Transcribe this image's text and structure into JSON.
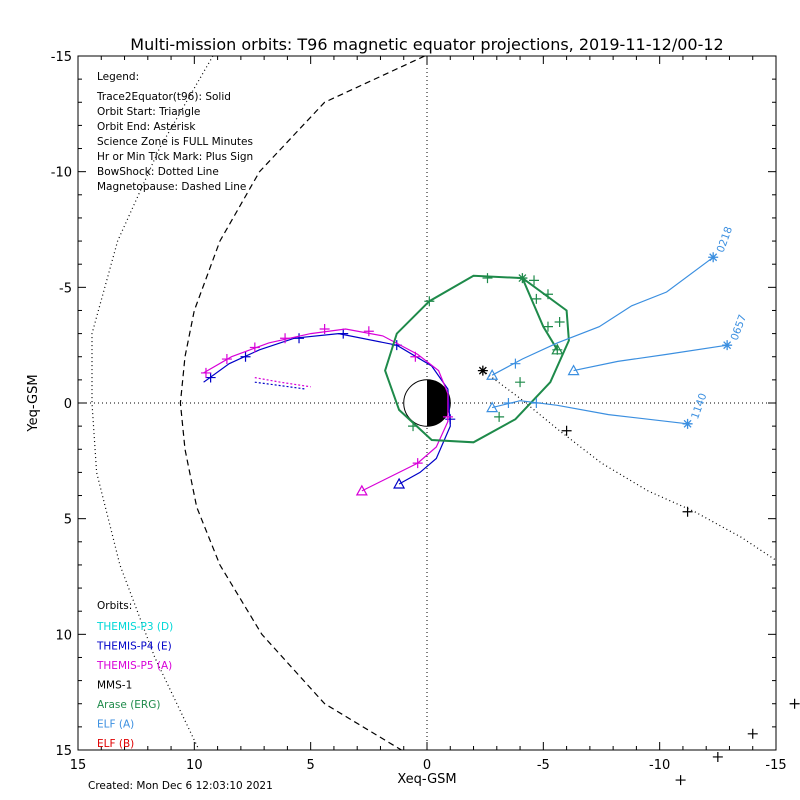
{
  "title": "Multi-mission orbits: T96 magnetic equator projections, 2019-11-12/00-12",
  "created": "Created: Mon Dec  6 12:03:10 2021",
  "legend": {
    "heading": "Legend:",
    "lines": [
      "Trace2Equator(t96): Solid",
      "Orbit Start: Triangle",
      "Orbit End: Asterisk",
      "Science Zone is FULL Minutes",
      "Hr or Min Tick Mark: Plus Sign",
      "BowShock: Dotted Line",
      "Magnetopause: Dashed Line"
    ]
  },
  "orbits_legend": {
    "heading": "Orbits:",
    "items": [
      {
        "label": "THEMIS-P3 (D)",
        "color": "#00d8d8"
      },
      {
        "label": "THEMIS-P4 (E)",
        "color": "#0000c8"
      },
      {
        "label": "THEMIS-P5 (A)",
        "color": "#d800d8"
      },
      {
        "label": "MMS-1",
        "color": "#000000"
      },
      {
        "label": "Arase (ERG)",
        "color": "#1e8a4a"
      },
      {
        "label": "ELF (A)",
        "color": "#3b8fe0"
      },
      {
        "label": "ELF (B)",
        "color": "#e00000"
      }
    ]
  },
  "chart_data": {
    "type": "line",
    "xlabel": "Xeq-GSM",
    "ylabel": "Yeq-GSM",
    "xlim": [
      15,
      -15
    ],
    "ylim": [
      -15,
      15
    ],
    "xticks": [
      15,
      10,
      5,
      0,
      -5,
      -10,
      -15
    ],
    "yticks": [
      -15,
      -10,
      -5,
      0,
      5,
      10,
      15
    ],
    "xtick_labels": [
      "15",
      "10",
      "5",
      "0",
      "-5",
      "-10",
      "-15"
    ],
    "ytick_labels": [
      "-15",
      "-10",
      "-5",
      "0",
      "5",
      "10",
      "15"
    ],
    "earth": {
      "radius": 1
    },
    "boundaries": [
      {
        "name": "BowShock",
        "style": "dotted",
        "color": "#000000",
        "points": [
          [
            9.2,
            -15
          ],
          [
            11.5,
            -11
          ],
          [
            13.3,
            -7
          ],
          [
            14.4,
            -3
          ],
          [
            14.4,
            0
          ],
          [
            14.2,
            3
          ],
          [
            13.2,
            7
          ],
          [
            11.7,
            11
          ],
          [
            9.8,
            15
          ]
        ]
      },
      {
        "name": "Magnetopause",
        "style": "dashed",
        "color": "#000000",
        "points": [
          [
            0.1,
            -15
          ],
          [
            4.4,
            -13
          ],
          [
            7.2,
            -10
          ],
          [
            8.9,
            -7
          ],
          [
            10.0,
            -4
          ],
          [
            10.4,
            -2
          ],
          [
            10.6,
            0
          ],
          [
            10.4,
            2
          ],
          [
            9.9,
            4.5
          ],
          [
            8.9,
            7
          ],
          [
            7.1,
            10
          ],
          [
            4.4,
            13
          ],
          [
            1.1,
            15
          ]
        ]
      }
    ],
    "series": [
      {
        "name": "THEMIS-P4 (E)",
        "color": "#0000c8",
        "points": [
          [
            9.6,
            -0.9
          ],
          [
            8.5,
            -1.7
          ],
          [
            7.2,
            -2.3
          ],
          [
            5.7,
            -2.8
          ],
          [
            3.8,
            -3.0
          ],
          [
            1.3,
            -2.5
          ],
          [
            -0.2,
            -1.6
          ],
          [
            -0.9,
            -0.6
          ],
          [
            -1.0,
            1.0
          ],
          [
            -0.4,
            2.4
          ],
          [
            0.3,
            3.0
          ],
          [
            1.2,
            3.5
          ]
        ],
        "ticks": [
          [
            9.3,
            -1.1
          ],
          [
            7.8,
            -2.0
          ],
          [
            5.5,
            -2.8
          ],
          [
            3.6,
            -3.0
          ],
          [
            1.3,
            -2.5
          ],
          [
            -1.0,
            0.7
          ]
        ],
        "start": [
          1.2,
          3.5
        ],
        "end": null
      },
      {
        "name": "THEMIS-P5 (A)",
        "color": "#d800d8",
        "points": [
          [
            9.6,
            -1.3
          ],
          [
            8.4,
            -2.0
          ],
          [
            6.8,
            -2.6
          ],
          [
            5.0,
            -3.0
          ],
          [
            3.5,
            -3.2
          ],
          [
            1.9,
            -2.9
          ],
          [
            0.4,
            -2.1
          ],
          [
            -0.5,
            -1.4
          ],
          [
            -0.9,
            -0.4
          ],
          [
            -0.9,
            0.8
          ],
          [
            -0.4,
            1.9
          ],
          [
            0.4,
            2.6
          ],
          [
            1.6,
            3.2
          ],
          [
            2.8,
            3.8
          ]
        ],
        "ticks": [
          [
            9.5,
            -1.3
          ],
          [
            8.6,
            -1.9
          ],
          [
            7.4,
            -2.4
          ],
          [
            6.1,
            -2.8
          ],
          [
            4.4,
            -3.2
          ],
          [
            2.5,
            -3.1
          ],
          [
            0.5,
            -2.0
          ],
          [
            -0.9,
            0.6
          ],
          [
            0.4,
            2.6
          ]
        ],
        "start": [
          2.8,
          3.8
        ],
        "end": null
      },
      {
        "name": "THEMIS-P5 (A) residual",
        "color": "#d800d8",
        "dash": "2,2",
        "points": [
          [
            7.4,
            -1.1
          ],
          [
            6.3,
            -0.9
          ],
          [
            5.0,
            -0.7
          ]
        ],
        "ticks": [],
        "start": null,
        "end": null
      },
      {
        "name": "THEMIS-P4 (E) residual",
        "color": "#0000c8",
        "dash": "2,2",
        "points": [
          [
            7.4,
            -0.9
          ],
          [
            6.3,
            -0.75
          ],
          [
            5.2,
            -0.6
          ]
        ],
        "ticks": [],
        "start": null,
        "end": null
      },
      {
        "name": "MMS-1",
        "color": "#000000",
        "dash": "1,3",
        "points": [
          [
            -2.4,
            -1.4
          ],
          [
            -4.0,
            -0.2
          ],
          [
            -5.7,
            1.2
          ],
          [
            -7.5,
            2.6
          ],
          [
            -9.5,
            3.8
          ],
          [
            -11.5,
            4.7
          ],
          [
            -13.5,
            5.8
          ],
          [
            -15.0,
            6.8
          ]
        ],
        "ticks": [
          [
            -6.0,
            1.2
          ],
          [
            -11.2,
            4.7
          ]
        ],
        "start": null,
        "end": [
          -2.4,
          -1.4
        ]
      },
      {
        "name": "Arase (ERG)",
        "color": "#1e8a4a",
        "points": [
          [
            -5.6,
            -2.3
          ],
          [
            -5.0,
            -3.3
          ],
          [
            -4.1,
            -5.4
          ],
          [
            -2.0,
            -5.5
          ],
          [
            -0.1,
            -4.4
          ],
          [
            1.3,
            -3.0
          ],
          [
            1.8,
            -1.4
          ],
          [
            1.2,
            0.3
          ],
          [
            -0.2,
            1.6
          ],
          [
            -2.0,
            1.7
          ],
          [
            -3.8,
            0.7
          ],
          [
            -5.3,
            -0.9
          ],
          [
            -6.1,
            -2.7
          ],
          [
            -6.0,
            -4.0
          ],
          [
            -4.1,
            -5.4
          ]
        ],
        "ticks": [
          [
            -2.6,
            -5.4
          ],
          [
            -4.6,
            -5.3
          ],
          [
            -5.2,
            -4.7
          ],
          [
            -5.7,
            -3.5
          ],
          [
            -5.6,
            -2.3
          ],
          [
            -4.0,
            -0.9
          ],
          [
            -3.1,
            0.6
          ],
          [
            0.6,
            1.0
          ],
          [
            -0.1,
            -4.4
          ],
          [
            -4.7,
            -4.5
          ],
          [
            -5.2,
            -3.3
          ]
        ],
        "start": [
          -5.6,
          -2.3
        ],
        "end": [
          -4.1,
          -5.4
        ]
      },
      {
        "name": "ELF (A) 0218",
        "color": "#3b8fe0",
        "points": [
          [
            -2.8,
            -1.2
          ],
          [
            -4.1,
            -1.9
          ],
          [
            -5.6,
            -2.6
          ],
          [
            -7.4,
            -3.3
          ],
          [
            -8.8,
            -4.2
          ],
          [
            -10.3,
            -4.8
          ],
          [
            -12.3,
            -6.3
          ]
        ],
        "ticks": [
          [
            -3.8,
            -1.7
          ]
        ],
        "start": [
          -2.8,
          -1.2
        ],
        "end": [
          -12.3,
          -6.3
        ],
        "label": "0218"
      },
      {
        "name": "ELF (A) 0657",
        "color": "#3b8fe0",
        "points": [
          [
            -6.3,
            -1.4
          ],
          [
            -8.2,
            -1.8
          ],
          [
            -10.3,
            -2.1
          ],
          [
            -12.9,
            -2.5
          ]
        ],
        "ticks": [],
        "start": [
          -6.3,
          -1.4
        ],
        "end": [
          -12.9,
          -2.5
        ],
        "label": "0657"
      },
      {
        "name": "ELF (A) 1140",
        "color": "#3b8fe0",
        "points": [
          [
            -2.8,
            0.2
          ],
          [
            -4.0,
            -0.1
          ],
          [
            -5.6,
            0.1
          ],
          [
            -7.8,
            0.5
          ],
          [
            -11.2,
            0.9
          ]
        ],
        "ticks": [
          [
            -3.5,
            0.0
          ],
          [
            -4.7,
            0.0
          ]
        ],
        "start": [
          -2.8,
          0.2
        ],
        "end": [
          -11.2,
          0.9
        ],
        "label": "1140"
      }
    ],
    "outside_ticks": [
      [
        -16.2,
        7.7
      ],
      [
        -15.8,
        13.0
      ],
      [
        -14.0,
        14.3
      ],
      [
        -12.5,
        15.3
      ],
      [
        -10.9,
        16.3
      ],
      [
        -9.4,
        17.0
      ]
    ]
  }
}
